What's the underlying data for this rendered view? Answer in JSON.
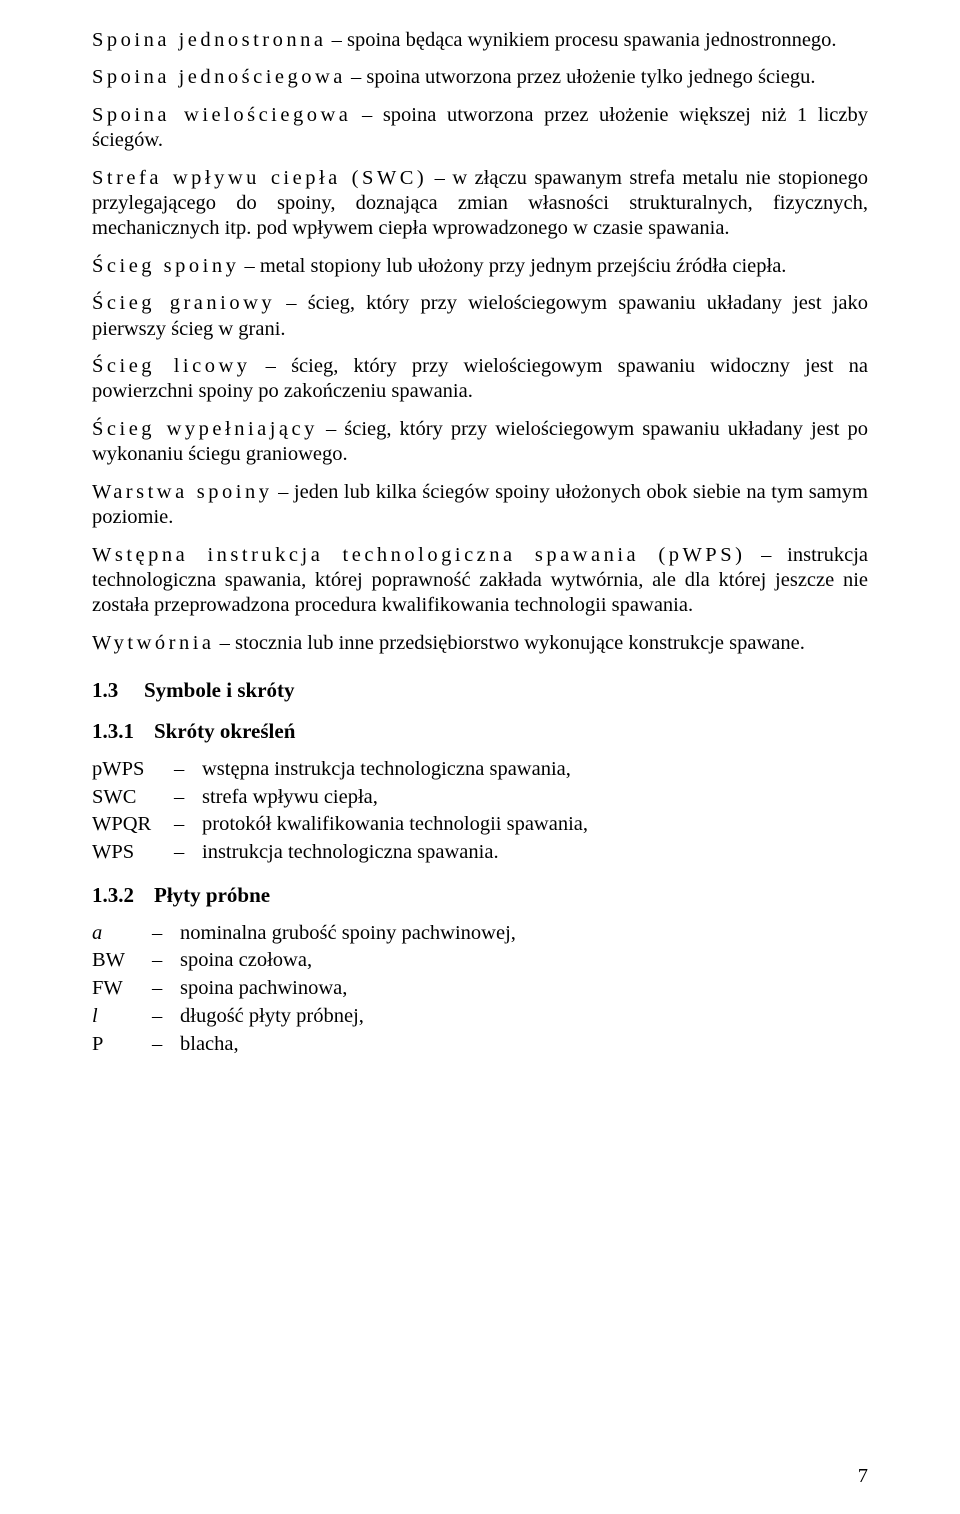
{
  "defs": [
    {
      "term": "Spoina jednostronna",
      "body": " – spoina będąca wynikiem procesu spawania jednostronnego."
    },
    {
      "term": "Spoina jednościegowa",
      "body": " – spoina utworzona przez ułożenie tylko jednego ściegu."
    },
    {
      "term": "Spoina wielościegowa",
      "body": " – spoina utworzona przez ułożenie większej niż 1 liczby ściegów."
    },
    {
      "term": "Strefa wpływu ciepła (SWC)",
      "body": " – w złączu spawanym strefa metalu nie stopionego przylegającego do spoiny, doznająca zmian własności strukturalnych, fizycznych, mechanicznych itp. pod wpływem ciepła wprowadzonego w czasie spawania."
    },
    {
      "term": "Ścieg spoiny",
      "body": " – metal stopiony lub ułożony przy jednym przejściu źródła ciepła."
    },
    {
      "term": "Ścieg graniowy",
      "body": " – ścieg, który przy wielościegowym spawaniu układany jest jako pierwszy ścieg w grani."
    },
    {
      "term": "Ścieg licowy",
      "body": " – ścieg, który przy wielościegowym spawaniu widoczny jest na powierzchni spoiny po zakończeniu spawania."
    },
    {
      "term": "Ścieg wypełniający",
      "body": " – ścieg, który przy wielościegowym spawaniu układany jest po wykonaniu ściegu graniowego."
    },
    {
      "term": "Warstwa spoiny",
      "body": " – jeden lub kilka ściegów spoiny ułożonych obok siebie na tym samym poziomie."
    },
    {
      "term": "Wstępna instrukcja technologiczna spawania (pWPS)",
      "body": " – instrukcja technologiczna spawania, której poprawność zakłada wytwórnia, ale dla której jeszcze nie została przeprowadzona procedura kwalifikowania technologii spawania."
    },
    {
      "term": "Wytwórnia",
      "body": " – stocznia lub inne przedsiębiorstwo wykonujące konstrukcje spawane."
    }
  ],
  "sec13": {
    "num": "1.3",
    "title": "Symbole i skróty"
  },
  "sec131": {
    "num": "1.3.1",
    "title": "Skróty określeń",
    "rows": [
      {
        "abbr": "pWPS",
        "text": "wstępna instrukcja technologiczna spawania,"
      },
      {
        "abbr": "SWC",
        "text": "strefa wpływu ciepła,"
      },
      {
        "abbr": "WPQR",
        "text": "protokół kwalifikowania technologii spawania,"
      },
      {
        "abbr": "WPS",
        "text": "instrukcja technologiczna spawania."
      }
    ]
  },
  "sec132": {
    "num": "1.3.2",
    "title": "Płyty próbne",
    "rows": [
      {
        "abbr": "a",
        "italic": true,
        "text": "nominalna grubość spoiny pachwinowej,"
      },
      {
        "abbr": "BW",
        "italic": false,
        "text": "spoina czołowa,"
      },
      {
        "abbr": "FW",
        "italic": false,
        "text": "spoina pachwinowa,"
      },
      {
        "abbr": "l",
        "italic": true,
        "text": "długość płyty próbnej,"
      },
      {
        "abbr": "P",
        "italic": false,
        "text": "blacha,"
      }
    ]
  },
  "page_number": "7"
}
